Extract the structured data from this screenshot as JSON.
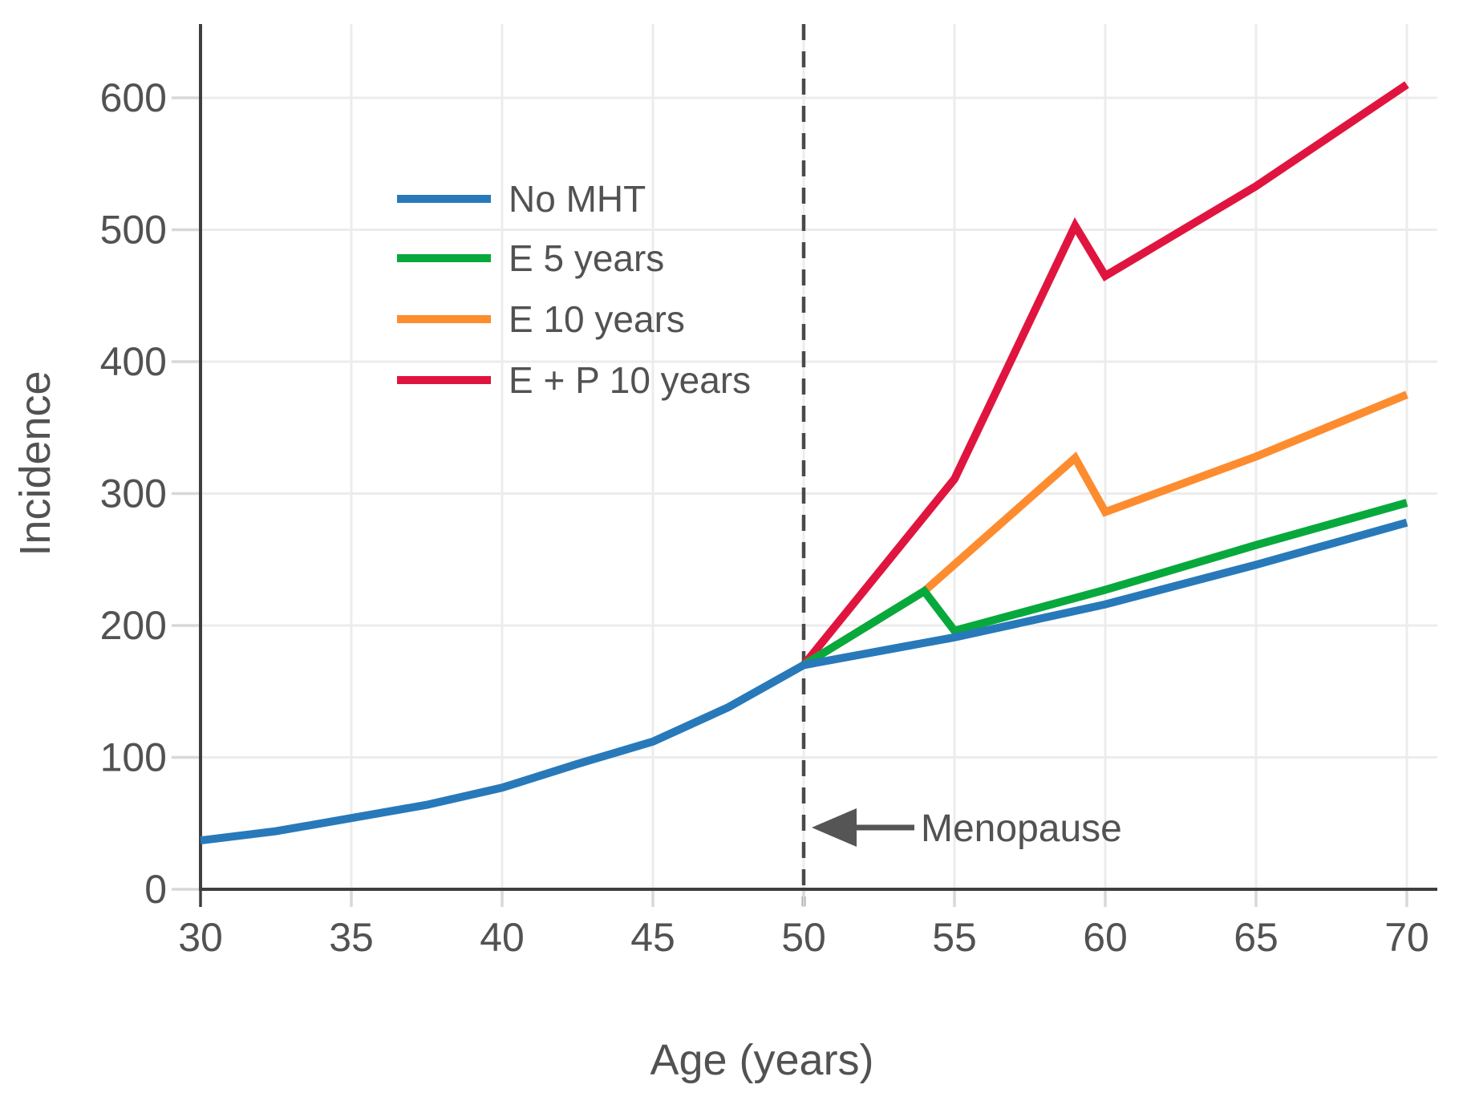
{
  "figure": {
    "background": "#ffffff",
    "text_color": "#525252",
    "spine_color": "#3f3f3f",
    "grid_color": "#ececec",
    "minor_tick_color": "#d8d8d8",
    "dashed_line_color": "#4a4a4a",
    "arrow_color": "#555555"
  },
  "chart_data": {
    "type": "line",
    "title": "",
    "xlabel": "Age (years)",
    "ylabel": "Incidence",
    "xlim": [
      30,
      71
    ],
    "ylim": [
      0,
      655
    ],
    "xticks": [
      30,
      35,
      40,
      45,
      50,
      55,
      60,
      65,
      70
    ],
    "yticks": [
      0,
      100,
      200,
      300,
      400,
      500,
      600
    ],
    "grid": true,
    "legend_position": "upper-left-inside",
    "series": [
      {
        "name": "No MHT",
        "color": "#2879b9",
        "points": [
          [
            30,
            37
          ],
          [
            32.5,
            44
          ],
          [
            35,
            54
          ],
          [
            37.5,
            64
          ],
          [
            40,
            77
          ],
          [
            42.5,
            95
          ],
          [
            45,
            112
          ],
          [
            47.5,
            138
          ],
          [
            50,
            170
          ],
          [
            55,
            191
          ],
          [
            60,
            216
          ],
          [
            65,
            246
          ],
          [
            70,
            278
          ]
        ]
      },
      {
        "name": "E 5 years",
        "color": "#08a93c",
        "points": [
          [
            50,
            170
          ],
          [
            54,
            226
          ],
          [
            55,
            196
          ],
          [
            60,
            227
          ],
          [
            65,
            261
          ],
          [
            70,
            293
          ]
        ]
      },
      {
        "name": "E 10 years",
        "color": "#fd8c2f",
        "points": [
          [
            50,
            170
          ],
          [
            54,
            226
          ],
          [
            59,
            327
          ],
          [
            60,
            286
          ],
          [
            65,
            328
          ],
          [
            70,
            375
          ]
        ]
      },
      {
        "name": "E + P 10 years",
        "color": "#e0153f",
        "points": [
          [
            50,
            170
          ],
          [
            55,
            311
          ],
          [
            59,
            503
          ],
          [
            60,
            465
          ],
          [
            65,
            533
          ],
          [
            70,
            610
          ]
        ]
      }
    ],
    "annotation": {
      "label": "Menopause",
      "x": 50,
      "arrow_direction": "left"
    }
  }
}
